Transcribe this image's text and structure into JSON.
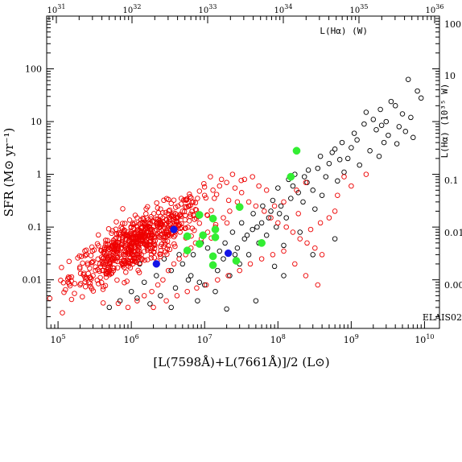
{
  "chart_data": {
    "type": "scatter",
    "title": "",
    "xlabel": "[L(7598Å)+L(7661Å)]/2 (L⊙)",
    "ylabel": "SFR (M⊙ yr⁻¹)",
    "xscale": "log",
    "yscale": "log",
    "xlim": [
      70000.0,
      16000000000.0
    ],
    "ylim": [
      0.0012,
      1000.0
    ],
    "x_ticks": [
      {
        "value": 100000.0,
        "base": "10",
        "exp": "5"
      },
      {
        "value": 1000000.0,
        "base": "10",
        "exp": "6"
      },
      {
        "value": 10000000.0,
        "base": "10",
        "exp": "7"
      },
      {
        "value": 100000000.0,
        "base": "10",
        "exp": "8"
      },
      {
        "value": 1000000000.0,
        "base": "10",
        "exp": "9"
      },
      {
        "value": 10000000000.0,
        "base": "10",
        "exp": "10"
      }
    ],
    "y_ticks": [
      {
        "value": 0.01,
        "label": "0.01"
      },
      {
        "value": 0.1,
        "label": "0.1"
      },
      {
        "value": 1,
        "label": "1"
      },
      {
        "value": 10,
        "label": "10"
      },
      {
        "value": 100,
        "label": "100"
      }
    ],
    "top_axis": {
      "label": "L(Hα) (W)",
      "ticks": [
        {
          "value": 1e+31,
          "base": "10",
          "exp": "31"
        },
        {
          "value": 1e+32,
          "base": "10",
          "exp": "32"
        },
        {
          "value": 1e+33,
          "base": "10",
          "exp": "33"
        },
        {
          "value": 1e+34,
          "base": "10",
          "exp": "34"
        },
        {
          "value": 1e+35,
          "base": "10",
          "exp": "35"
        },
        {
          "value": 1e+36,
          "base": "10",
          "exp": "36"
        }
      ]
    },
    "right_axis": {
      "label": "L(Hα) (10³⁵ W)",
      "ticks": [
        {
          "value": 100,
          "label": "100"
        },
        {
          "value": 10,
          "label": "10"
        },
        {
          "value": 0.1,
          "label": "0.1"
        },
        {
          "value": 0.01,
          "label": "0.01"
        },
        {
          "value": 0.001,
          "label": "0.00"
        }
      ]
    },
    "annotation": "ELAIS02",
    "series": [
      {
        "marker": "open-circle",
        "color": "#000000",
        "points": [
          [
            6000000000.0,
            63
          ],
          [
            8000000000.0,
            38
          ],
          [
            9000000000.0,
            28
          ],
          [
            3500000000.0,
            24
          ],
          [
            4000000000.0,
            20
          ],
          [
            2500000000.0,
            17
          ],
          [
            5000000000.0,
            14
          ],
          [
            6500000000.0,
            12
          ],
          [
            2000000000.0,
            11
          ],
          [
            3000000000.0,
            10
          ],
          [
            1500000000.0,
            9
          ],
          [
            4500000000.0,
            8
          ],
          [
            2200000000.0,
            7
          ],
          [
            5500000000.0,
            6.5
          ],
          [
            3200000000.0,
            5.5
          ],
          [
            7000000000.0,
            5
          ],
          [
            1200000000.0,
            4.5
          ],
          [
            2800000000.0,
            4
          ],
          [
            4200000000.0,
            3.8
          ],
          [
            1000000000.0,
            3.2
          ],
          [
            600000000.0,
            3.0
          ],
          [
            1800000000.0,
            2.8
          ],
          [
            2400000000.0,
            2.2
          ],
          [
            900000000.0,
            2.0
          ],
          [
            700000000.0,
            1.9
          ],
          [
            500000000.0,
            1.6
          ],
          [
            1300000000.0,
            1.5
          ],
          [
            350000000.0,
            1.3
          ],
          [
            800000000.0,
            1.1
          ],
          [
            450000000.0,
            0.9
          ],
          [
            650000000.0,
            0.75
          ],
          [
            250000000.0,
            0.7
          ],
          [
            300000000.0,
            0.5
          ],
          [
            190000000.0,
            0.45
          ],
          [
            400000000.0,
            0.4
          ],
          [
            150000000.0,
            0.35
          ],
          [
            220000000.0,
            0.3
          ],
          [
            110000000.0,
            0.25
          ],
          [
            320000000.0,
            0.22
          ],
          [
            80000000.0,
            0.2
          ],
          [
            130000000.0,
            0.15
          ],
          [
            60000000.0,
            0.12
          ],
          [
            95000000.0,
            0.1
          ],
          [
            45000000.0,
            0.09
          ],
          [
            200000000.0,
            0.08
          ],
          [
            70000000.0,
            0.07
          ],
          [
            35000000.0,
            0.06
          ],
          [
            55000000.0,
            0.05
          ],
          [
            120000000.0,
            0.045
          ],
          [
            28000000.0,
            0.04
          ],
          [
            40000000.0,
            0.03
          ],
          [
            18000000.0,
            0.025
          ],
          [
            30000000.0,
            0.02
          ],
          [
            90000000.0,
            0.018
          ],
          [
            15000000.0,
            0.015
          ],
          [
            22000000.0,
            0.012
          ],
          [
            6000000.0,
            0.01
          ],
          [
            10000000.0,
            0.008
          ],
          [
            4000000.0,
            0.007
          ],
          [
            14000000.0,
            0.006
          ],
          [
            2500000.0,
            0.005
          ],
          [
            8000000.0,
            0.004
          ],
          [
            1800000.0,
            0.0035
          ],
          [
            3500000.0,
            0.003
          ],
          [
            1200000.0,
            0.0045
          ],
          [
            20000000.0,
            0.0028
          ],
          [
            50000000.0,
            0.004
          ],
          [
            120000000.0,
            0.012
          ],
          [
            300000000.0,
            0.03
          ],
          [
            600000000.0,
            0.06
          ],
          [
            5000000.0,
            0.02
          ],
          [
            7000000.0,
            0.03
          ],
          [
            9000000.0,
            0.05
          ],
          [
            11000000.0,
            0.04
          ],
          [
            16000000.0,
            0.035
          ],
          [
            24000000.0,
            0.08
          ],
          [
            32000000.0,
            0.12
          ],
          [
            46000000.0,
            0.18
          ],
          [
            62000000.0,
            0.25
          ],
          [
            85000000.0,
            0.32
          ],
          [
            100000000.0,
            0.55
          ],
          [
            140000000.0,
            0.8
          ],
          [
            170000000.0,
            1.0
          ],
          [
            260000000.0,
            1.2
          ],
          [
            380000000.0,
            2.2
          ],
          [
            550000000.0,
            2.6
          ],
          [
            750000000.0,
            4.0
          ],
          [
            1100000000.0,
            6.0
          ],
          [
            1600000000.0,
            15
          ],
          [
            2600000000.0,
            8.5
          ],
          [
            3500000.0,
            0.015
          ],
          [
            2200000.0,
            0.012
          ],
          [
            1500000.0,
            0.009
          ],
          [
            1000000.0,
            0.006
          ],
          [
            700000.0,
            0.004
          ],
          [
            500000.0,
            0.003
          ],
          [
            1300000.0,
            0.02
          ],
          [
            2800000.0,
            0.025
          ],
          [
            4500000.0,
            0.03
          ],
          [
            6500000.0,
            0.012
          ],
          [
            8500000.0,
            0.009
          ],
          [
            13000000.0,
            0.02
          ],
          [
            19000000.0,
            0.05
          ],
          [
            26000000.0,
            0.03
          ],
          [
            38000000.0,
            0.07
          ],
          [
            52000000.0,
            0.1
          ],
          [
            75000000.0,
            0.15
          ],
          [
            105000000.0,
            0.18
          ],
          [
            160000000.0,
            0.6
          ],
          [
            230000000.0,
            0.9
          ]
        ]
      },
      {
        "marker": "open-circle",
        "color": "#ee0000",
        "points": [
          [
            200000.0,
            0.008
          ],
          [
            300000.0,
            0.012
          ],
          [
            400000.0,
            0.015
          ],
          [
            500000.0,
            0.02
          ],
          [
            600000.0,
            0.025
          ],
          [
            700000.0,
            0.03
          ],
          [
            800000.0,
            0.035
          ],
          [
            900000.0,
            0.04
          ],
          [
            1000000.0,
            0.05
          ],
          [
            1200000.0,
            0.06
          ],
          [
            1400000.0,
            0.07
          ],
          [
            1600000.0,
            0.08
          ],
          [
            1800000.0,
            0.09
          ],
          [
            2000000.0,
            0.1
          ],
          [
            2500000.0,
            0.12
          ],
          [
            3000000.0,
            0.14
          ],
          [
            3500000.0,
            0.16
          ],
          [
            4000000.0,
            0.18
          ],
          [
            5000000.0,
            0.2
          ],
          [
            6000000.0,
            0.25
          ],
          [
            7000000.0,
            0.3
          ],
          [
            8000000.0,
            0.35
          ],
          [
            10000000.0,
            0.4
          ],
          [
            13000000.0,
            0.5
          ],
          [
            16000000.0,
            0.6
          ],
          [
            20000000.0,
            0.7
          ],
          [
            26000000.0,
            0.55
          ],
          [
            32000000.0,
            0.45
          ],
          [
            40000000.0,
            0.3
          ],
          [
            50000000.0,
            0.25
          ],
          [
            65000000.0,
            0.2
          ],
          [
            80000000.0,
            0.15
          ],
          [
            100000000.0,
            0.12
          ],
          [
            130000000.0,
            0.1
          ],
          [
            160000000.0,
            0.08
          ],
          [
            200000000.0,
            0.06
          ],
          [
            250000000.0,
            0.05
          ],
          [
            320000000.0,
            0.04
          ],
          [
            400000000.0,
            0.03
          ],
          [
            500000000.0,
            0.15
          ],
          [
            650000000.0,
            0.4
          ],
          [
            800000000.0,
            0.9
          ],
          [
            120000000.0,
            0.3
          ],
          [
            180000000.0,
            0.5
          ],
          [
            240000000.0,
            0.7
          ],
          [
            90000000.0,
            0.25
          ],
          [
            70000000.0,
            0.5
          ],
          [
            55000000.0,
            0.6
          ],
          [
            45000000.0,
            0.9
          ],
          [
            35000000.0,
            0.8
          ],
          [
            28000000.0,
            0.3
          ],
          [
            22000000.0,
            0.2
          ],
          [
            18000000.0,
            0.15
          ],
          [
            14000000.0,
            0.1
          ],
          [
            11000000.0,
            0.08
          ],
          [
            9000000.0,
            0.06
          ],
          [
            7500000.0,
            0.05
          ],
          [
            6500000.0,
            0.04
          ],
          [
            5500000.0,
            0.03
          ],
          [
            4500000.0,
            0.025
          ],
          [
            3800000.0,
            0.02
          ],
          [
            3200000.0,
            0.015
          ],
          [
            2700000.0,
            0.01
          ],
          [
            2300000.0,
            0.008
          ],
          [
            1900000.0,
            0.006
          ],
          [
            1500000.0,
            0.005
          ],
          [
            1200000.0,
            0.004
          ],
          [
            900000.0,
            0.003
          ],
          [
            2000000.0,
            0.003
          ],
          [
            3000000.0,
            0.004
          ],
          [
            4200000.0,
            0.005
          ],
          [
            5800000.0,
            0.006
          ],
          [
            7800000.0,
            0.007
          ],
          [
            10500000.0,
            0.008
          ],
          [
            15000000.0,
            0.01
          ],
          [
            21000000.0,
            0.012
          ],
          [
            30000000.0,
            0.015
          ],
          [
            42000000.0,
            0.02
          ],
          [
            60000000.0,
            0.025
          ],
          [
            85000000.0,
            0.03
          ],
          [
            120000000.0,
            0.035
          ],
          [
            170000000.0,
            0.02
          ],
          [
            240000000.0,
            0.012
          ],
          [
            350000000.0,
            0.008
          ],
          [
            1600000000.0,
            1.0
          ],
          [
            1000000000.0,
            0.6
          ],
          [
            600000000.0,
            0.2
          ],
          [
            380000000.0,
            0.12
          ],
          [
            280000000.0,
            0.09
          ],
          [
            190000000.0,
            0.18
          ],
          [
            1500000.0,
            0.12
          ],
          [
            1200000.0,
            0.15
          ],
          [
            900000.0,
            0.08
          ],
          [
            2500000.0,
            0.22
          ],
          [
            3500000.0,
            0.28
          ],
          [
            4800000.0,
            0.35
          ],
          [
            6200000.0,
            0.42
          ],
          [
            8500000.0,
            0.48
          ],
          [
            12000000.0,
            0.9
          ],
          [
            17000000.0,
            0.8
          ],
          [
            24000000.0,
            1.0
          ],
          [
            600000.0,
            0.06
          ],
          [
            450000.0,
            0.045
          ],
          [
            800000.0,
            0.02
          ],
          [
            1100000.0,
            0.025
          ]
        ],
        "dense_cluster": {
          "x_center": 1200000.0,
          "y_center": 0.05,
          "x_spread_dex": 0.45,
          "y_spread_dex": 0.4,
          "count": 650
        }
      },
      {
        "marker": "filled-circle",
        "color": "#33ee33",
        "points": [
          [
            180000000.0,
            2.8
          ],
          [
            150000000.0,
            0.9
          ],
          [
            30000000.0,
            0.24
          ],
          [
            8500000.0,
            0.17
          ],
          [
            13000000.0,
            0.145
          ],
          [
            14000000.0,
            0.09
          ],
          [
            5800000.0,
            0.067
          ],
          [
            14000000.0,
            0.064
          ],
          [
            8500000.0,
            0.048
          ],
          [
            60000000.0,
            0.05
          ],
          [
            9500000.0,
            0.07
          ],
          [
            5800000.0,
            0.036
          ],
          [
            13000000.0,
            0.028
          ],
          [
            27000000.0,
            0.023
          ],
          [
            13000000.0,
            0.019
          ]
        ]
      },
      {
        "marker": "filled-circle",
        "color": "#1414e6",
        "points": [
          [
            3800000.0,
            0.09
          ],
          [
            21000000.0,
            0.032
          ],
          [
            2200000.0,
            0.02
          ]
        ]
      }
    ]
  }
}
